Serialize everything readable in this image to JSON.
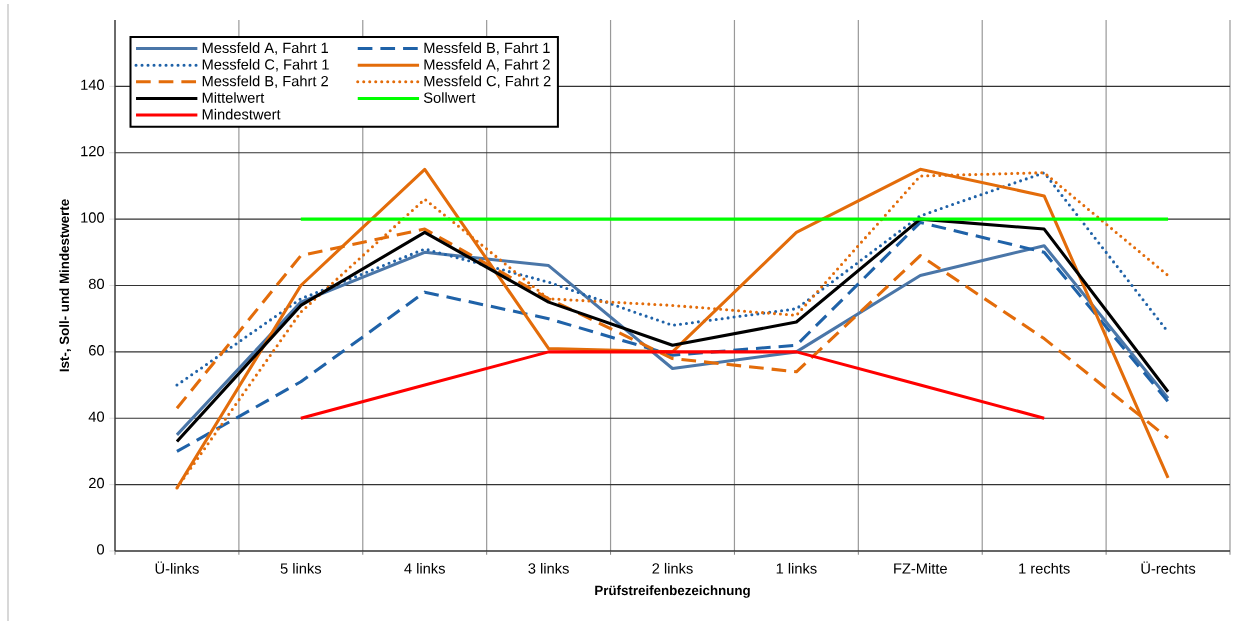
{
  "chart_data": {
    "type": "line",
    "xlabel": "Prüfstreifenbezeichnung",
    "ylabel": "Ist-, Soll- und Mindestwerte",
    "categories": [
      "Ü-links",
      "5 links",
      "4 links",
      "3 links",
      "2 links",
      "1 links",
      "FZ-Mitte",
      "1 rechts",
      "Ü-rechts"
    ],
    "ylim": [
      0,
      160
    ],
    "yticks": [
      0,
      20,
      40,
      60,
      80,
      100,
      120,
      140
    ],
    "grid": true,
    "legend": "top left",
    "series": [
      {
        "name": "Messfeld A, Fahrt 1",
        "color": "#4a76a8",
        "line_style": "solid",
        "values": [
          35,
          75,
          90,
          86,
          55,
          60,
          83,
          92,
          46
        ]
      },
      {
        "name": "Messfeld B, Fahrt 1",
        "color": "#1f62a8",
        "line_style": "dashed",
        "values": [
          30,
          51,
          78,
          70,
          59,
          62,
          99,
          90,
          45
        ]
      },
      {
        "name": "Messfeld C, Fahrt 1",
        "color": "#1f62a8",
        "line_style": "dotted",
        "values": [
          50,
          76,
          91,
          81,
          68,
          73,
          101,
          114,
          66
        ]
      },
      {
        "name": "Messfeld A, Fahrt 2",
        "color": "#e36c0a",
        "line_style": "solid",
        "values": [
          19,
          80,
          115,
          61,
          60,
          96,
          115,
          107,
          22
        ]
      },
      {
        "name": "Messfeld B, Fahrt 2",
        "color": "#e36c0a",
        "line_style": "dashed",
        "values": [
          43,
          89,
          97,
          76,
          58,
          54,
          89,
          64,
          34
        ]
      },
      {
        "name": "Messfeld C, Fahrt 2",
        "color": "#e36c0a",
        "line_style": "dotted",
        "values": [
          19,
          72,
          106,
          76,
          74,
          71,
          113,
          114,
          83
        ]
      },
      {
        "name": "Mittelwert",
        "color": "#000000",
        "line_style": "solid",
        "values": [
          33,
          74,
          96,
          75,
          62,
          69,
          100,
          97,
          48
        ]
      },
      {
        "name": "Sollwert",
        "color": "#00ff00",
        "line_style": "solid",
        "values": [
          null,
          100,
          100,
          100,
          100,
          100,
          100,
          100,
          100
        ]
      },
      {
        "name": "Mindestwert",
        "color": "#ff0000",
        "line_style": "solid",
        "values": [
          null,
          40,
          50,
          60,
          60,
          60,
          50,
          40,
          null
        ]
      }
    ]
  }
}
